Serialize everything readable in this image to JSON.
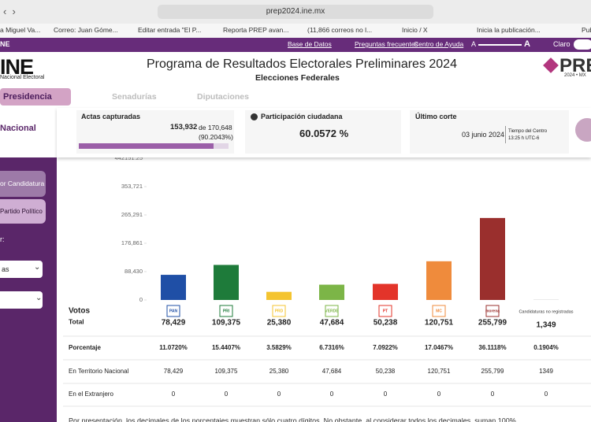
{
  "browser": {
    "url": "prep2024.ine.mx",
    "tabs": [
      "a Miguel Va...",
      "Correo: Juan Góme...",
      "Editar entrada \"El P...",
      "Reporta PREP avan...",
      "(11,866 correos no l...",
      "Inicio / X",
      "Inicia la publicación...",
      "Pub"
    ]
  },
  "topbar": {
    "brand": "NE",
    "links": [
      "Base de Datos",
      "Preguntas frecuentes",
      "Centro de Ayuda"
    ],
    "font_small": "A",
    "font_large": "A",
    "theme": "Claro"
  },
  "header": {
    "logo": "INE",
    "logo_sub": "Nacional Electoral",
    "title": "Programa de Resultados Electorales Preliminares 2024",
    "subtitle": "Elecciones Federales",
    "prep_logo": "PRE",
    "prep_sub": "2024 • MX"
  },
  "tabs": [
    "Presidencia",
    "Senadurías",
    "Diputaciones"
  ],
  "sidebar": {
    "scope": "Nacional",
    "buttons": [
      "or Candidatura",
      "Partido Político"
    ],
    "filter_label": "r:",
    "select": "as"
  },
  "cards": {
    "actas": {
      "title": "Actas capturadas",
      "count": "153,932",
      "total": "de 170,648",
      "percent": "(90.2043%)",
      "progress": 90.2043
    },
    "participacion": {
      "title": "Participación ciudadana",
      "value": "60.0572 %"
    },
    "corte": {
      "title": "Último corte",
      "date": "03 junio 2024",
      "zone": "Tiempo del Centro",
      "time": "13:25 h UTC-6"
    }
  },
  "chart_data": {
    "type": "bar",
    "categories": [
      null,
      null,
      null,
      null,
      null,
      null,
      null,
      "Candidaturas no registradas"
    ],
    "values": [
      78429,
      109375,
      25380,
      47684,
      50238,
      120751,
      255799,
      1349
    ],
    "value_labels": [
      "78,429",
      "109,375",
      "25,380",
      "47,684",
      "50,238",
      "120,751",
      "255,799",
      "1,349"
    ],
    "colors": [
      "#1f4fa6",
      "#1e7b3a",
      "#f4c430",
      "#7cb547",
      "#e3342a",
      "#ef8b3c",
      "#9a2f2d",
      "#d9d9d9"
    ],
    "ylim": [
      0,
      442151.25
    ],
    "yticks": [
      0,
      {
        "value": 88430,
        "label": "88,430"
      },
      {
        "value": 176861,
        "label": "176,861"
      },
      {
        "value": 265291,
        "label": "265,291"
      },
      {
        "value": 353721,
        "label": "353,721"
      },
      442151.25
    ]
  },
  "table": {
    "header": [
      "Votos",
      "Total"
    ],
    "party_logos": [
      "PAN",
      "PRI",
      "PRD",
      "VERDE",
      "PT",
      "MC",
      "morena"
    ],
    "rows": [
      {
        "label": "Porcentaje",
        "cells": [
          "11.0720%",
          "15.4407%",
          "3.5829%",
          "6.7316%",
          "7.0922%",
          "17.0467%",
          "36.1118%",
          "0.1904%"
        ]
      },
      {
        "label": "En Territorio Nacional",
        "cells": [
          "78,429",
          "109,375",
          "25,380",
          "47,684",
          "50,238",
          "120,751",
          "255,799",
          "1349"
        ]
      },
      {
        "label": "En el Extranjero",
        "cells": [
          "0",
          "0",
          "0",
          "0",
          "0",
          "0",
          "0",
          "0"
        ]
      }
    ]
  },
  "footnote": "Por presentación, los decimales de los porcentajes muestran sólo cuatro dígitos. No obstante, al considerar todos los decimales, suman 100%."
}
